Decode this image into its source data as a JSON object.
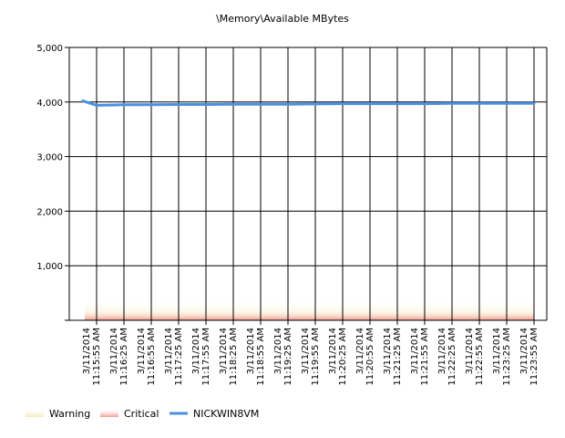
{
  "chart_data": {
    "type": "line",
    "title": "\\Memory\\Available MBytes",
    "xlabel": "",
    "ylabel": "",
    "ylim": [
      0,
      5000
    ],
    "y_ticks": [
      0,
      1000,
      2000,
      3000,
      4000,
      5000
    ],
    "y_tick_labels": [
      "",
      "1,000",
      "2,000",
      "3,000",
      "4,000",
      "5,000"
    ],
    "grid": true,
    "legend_position": "bottom-left",
    "categories": [
      "3/11/2014 11:15:55 AM",
      "3/11/2014 11:16:25 AM",
      "3/11/2014 11:16:55 AM",
      "3/11/2014 11:17:25 AM",
      "3/11/2014 11:17:55 AM",
      "3/11/2014 11:18:25 AM",
      "3/11/2014 11:18:55 AM",
      "3/11/2014 11:19:25 AM",
      "3/11/2014 11:19:55 AM",
      "3/11/2014 11:20:25 AM",
      "3/11/2014 11:20:55 AM",
      "3/11/2014 11:21:25 AM",
      "3/11/2014 11:21:55 AM",
      "3/11/2014 11:22:25 AM",
      "3/11/2014 11:22:55 AM",
      "3/11/2014 11:23:25 AM",
      "3/11/2014 11:23:55 AM"
    ],
    "x_tick_lines": [
      [
        "3/11/2014",
        "11:15:55 AM"
      ],
      [
        "3/11/2014",
        "11:16:25 AM"
      ],
      [
        "3/11/2014",
        "11:16:55 AM"
      ],
      [
        "3/11/2014",
        "11:17:25 AM"
      ],
      [
        "3/11/2014",
        "11:17:55 AM"
      ],
      [
        "3/11/2014",
        "11:18:25 AM"
      ],
      [
        "3/11/2014",
        "11:18:55 AM"
      ],
      [
        "3/11/2014",
        "11:19:25 AM"
      ],
      [
        "3/11/2014",
        "11:19:55 AM"
      ],
      [
        "3/11/2014",
        "11:20:25 AM"
      ],
      [
        "3/11/2014",
        "11:20:55 AM"
      ],
      [
        "3/11/2014",
        "11:21:25 AM"
      ],
      [
        "3/11/2014",
        "11:21:55 AM"
      ],
      [
        "3/11/2014",
        "11:22:25 AM"
      ],
      [
        "3/11/2014",
        "11:22:55 AM"
      ],
      [
        "3/11/2014",
        "11:23:25 AM"
      ],
      [
        "3/11/2014",
        "11:23:55 AM"
      ]
    ],
    "thresholds": [
      {
        "name": "Warning",
        "from": 0,
        "to": 350,
        "color": "#f4e9b8"
      },
      {
        "name": "Critical",
        "from": 0,
        "to": 170,
        "color": "#f39a8e"
      }
    ],
    "series": [
      {
        "name": "NICKWIN8VM",
        "color": "#4a90e2",
        "x": [
          "3/11/2014 11:15:40 AM",
          "3/11/2014 11:15:55 AM",
          "3/11/2014 11:16:25 AM",
          "3/11/2014 11:16:55 AM",
          "3/11/2014 11:17:25 AM",
          "3/11/2014 11:17:55 AM",
          "3/11/2014 11:18:25 AM",
          "3/11/2014 11:18:55 AM",
          "3/11/2014 11:19:25 AM",
          "3/11/2014 11:19:55 AM",
          "3/11/2014 11:20:25 AM",
          "3/11/2014 11:20:55 AM",
          "3/11/2014 11:21:25 AM",
          "3/11/2014 11:21:55 AM",
          "3/11/2014 11:22:25 AM",
          "3/11/2014 11:22:55 AM",
          "3/11/2014 11:23:25 AM",
          "3/11/2014 11:23:55 AM"
        ],
        "values": [
          4020,
          3940,
          3950,
          3950,
          3955,
          3955,
          3960,
          3960,
          3960,
          3965,
          3970,
          3970,
          3970,
          3970,
          3975,
          3975,
          3975,
          3975
        ]
      }
    ],
    "legend": [
      {
        "label": "Warning",
        "swatch": "#f4e9b8",
        "kind": "band"
      },
      {
        "label": "Critical",
        "swatch": "#f39a8e",
        "kind": "band"
      },
      {
        "label": "NICKWIN8VM",
        "swatch": "#4a90e2",
        "kind": "line"
      }
    ]
  }
}
